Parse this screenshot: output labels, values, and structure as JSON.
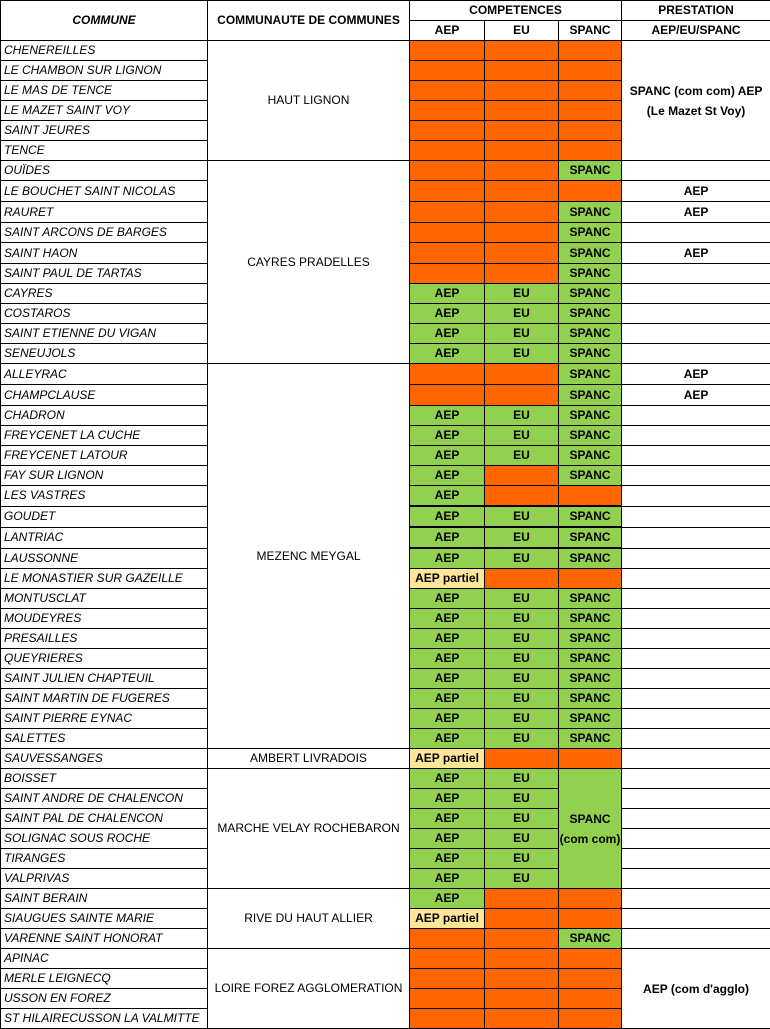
{
  "headers": {
    "commune": "COMMUNE",
    "comcom": "COMMUNAUTE DE COMMUNES",
    "competences": "COMPETENCES",
    "aep": "AEP",
    "eu": "EU",
    "spanc": "SPANC",
    "prestation": "PRESTATION",
    "prestation_sub": "AEP/EU/SPANC"
  },
  "colors": {
    "absent": "#ff6600",
    "present": "#92d050",
    "partial": "#ffe699"
  },
  "groups": [
    {
      "name": "HAUT LIGNON",
      "prestation_merged": "SPANC (com com) AEP (Le Mazet St Voy)",
      "communes": [
        {
          "name": "CHENEREILLES",
          "aep": "",
          "eu": "",
          "spanc": ""
        },
        {
          "name": "LE CHAMBON SUR LIGNON",
          "aep": "",
          "eu": "",
          "spanc": ""
        },
        {
          "name": "LE MAS DE TENCE",
          "aep": "",
          "eu": "",
          "spanc": ""
        },
        {
          "name": "LE MAZET SAINT VOY",
          "aep": "",
          "eu": "",
          "spanc": ""
        },
        {
          "name": "SAINT JEURES",
          "aep": "",
          "eu": "",
          "spanc": ""
        },
        {
          "name": "TENCE",
          "aep": "",
          "eu": "",
          "spanc": ""
        }
      ]
    },
    {
      "name": "CAYRES PRADELLES",
      "communes": [
        {
          "name": "OUÏDES",
          "aep": "",
          "eu": "",
          "spanc": "SPANC",
          "prest": ""
        },
        {
          "name": "LE BOUCHET SAINT NICOLAS",
          "aep": "",
          "eu": "",
          "spanc": "",
          "prest": "AEP"
        },
        {
          "name": "RAURET",
          "aep": "",
          "eu": "",
          "spanc": "SPANC",
          "prest": "AEP"
        },
        {
          "name": "SAINT ARCONS DE BARGES",
          "aep": "",
          "eu": "",
          "spanc": "SPANC",
          "prest": ""
        },
        {
          "name": "SAINT HAON",
          "aep": "",
          "eu": "",
          "spanc": "SPANC",
          "prest": "AEP"
        },
        {
          "name": "SAINT PAUL DE TARTAS",
          "aep": "",
          "eu": "",
          "spanc": "SPANC",
          "prest": ""
        },
        {
          "name": "CAYRES",
          "aep": "AEP",
          "eu": "EU",
          "spanc": "SPANC",
          "prest": ""
        },
        {
          "name": "COSTAROS",
          "aep": "AEP",
          "eu": "EU",
          "spanc": "SPANC",
          "prest": ""
        },
        {
          "name": "SAINT ETIENNE DU VIGAN",
          "aep": "AEP",
          "eu": "EU",
          "spanc": "SPANC",
          "prest": ""
        },
        {
          "name": "SENEUJOLS",
          "aep": "AEP",
          "eu": "EU",
          "spanc": "SPANC",
          "prest": ""
        }
      ]
    },
    {
      "name": "MEZENC MEYGAL",
      "communes": [
        {
          "name": "ALLEYRAC",
          "aep": "",
          "eu": "",
          "spanc": "SPANC",
          "prest": "AEP"
        },
        {
          "name": "CHAMPCLAUSE",
          "aep": "",
          "eu": "",
          "spanc": "SPANC",
          "prest": "AEP"
        },
        {
          "name": "CHADRON",
          "aep": "AEP",
          "eu": "EU",
          "spanc": "SPANC",
          "prest": ""
        },
        {
          "name": "FREYCENET LA CUCHE",
          "aep": "AEP",
          "eu": "EU",
          "spanc": "SPANC",
          "prest": ""
        },
        {
          "name": "FREYCENET LATOUR",
          "aep": "AEP",
          "eu": "EU",
          "spanc": "SPANC",
          "prest": ""
        },
        {
          "name": "FAY SUR LIGNON",
          "aep": "AEP",
          "eu": "",
          "spanc": "SPANC",
          "prest": ""
        },
        {
          "name": "LES VASTRES",
          "aep": "AEP",
          "eu": "",
          "spanc": "",
          "prest": ""
        },
        {
          "name": "GOUDET",
          "aep": "AEP",
          "eu": "EU",
          "spanc": "SPANC",
          "prest": ""
        },
        {
          "name": "LANTRIAC",
          "aep": "AEP",
          "eu": "EU",
          "spanc": "SPANC",
          "prest": ""
        },
        {
          "name": "LAUSSONNE",
          "aep": "AEP",
          "eu": "EU",
          "spanc": "SPANC",
          "prest": ""
        },
        {
          "name": "LE MONASTIER SUR GAZEILLE",
          "aep": "AEP partiel",
          "eu": "",
          "spanc": "",
          "prest": ""
        },
        {
          "name": "MONTUSCLAT",
          "aep": "AEP",
          "eu": "EU",
          "spanc": "SPANC",
          "prest": ""
        },
        {
          "name": "MOUDEYRES",
          "aep": "AEP",
          "eu": "EU",
          "spanc": "SPANC",
          "prest": ""
        },
        {
          "name": "PRESAILLES",
          "aep": "AEP",
          "eu": "EU",
          "spanc": "SPANC",
          "prest": ""
        },
        {
          "name": "QUEYRIERES",
          "aep": "AEP",
          "eu": "EU",
          "spanc": "SPANC",
          "prest": ""
        },
        {
          "name": "SAINT JULIEN CHAPTEUIL",
          "aep": "AEP",
          "eu": "EU",
          "spanc": "SPANC",
          "prest": ""
        },
        {
          "name": "SAINT MARTIN DE FUGERES",
          "aep": "AEP",
          "eu": "EU",
          "spanc": "SPANC",
          "prest": ""
        },
        {
          "name": "SAINT PIERRE EYNAC",
          "aep": "AEP",
          "eu": "EU",
          "spanc": "SPANC",
          "prest": ""
        },
        {
          "name": "SALETTES",
          "aep": "AEP",
          "eu": "EU",
          "spanc": "SPANC",
          "prest": ""
        }
      ]
    },
    {
      "name": "AMBERT LIVRADOIS",
      "communes": [
        {
          "name": "SAUVESSANGES",
          "aep": "AEP partiel",
          "eu": "",
          "spanc": "",
          "prest": ""
        }
      ]
    },
    {
      "name": "MARCHE VELAY ROCHEBARON",
      "spanc_merged": "SPANC (com com)",
      "communes": [
        {
          "name": "BOISSET",
          "aep": "AEP",
          "eu": "EU",
          "prest": ""
        },
        {
          "name": "SAINT ANDRE DE CHALENCON",
          "aep": "AEP",
          "eu": "EU",
          "prest": ""
        },
        {
          "name": "SAINT PAL DE CHALENCON",
          "aep": "AEP",
          "eu": "EU",
          "prest": ""
        },
        {
          "name": "SOLIGNAC SOUS ROCHE",
          "aep": "AEP",
          "eu": "EU",
          "prest": ""
        },
        {
          "name": "TIRANGES",
          "aep": "AEP",
          "eu": "EU",
          "prest": ""
        },
        {
          "name": "VALPRIVAS",
          "aep": "AEP",
          "eu": "EU",
          "prest": ""
        }
      ]
    },
    {
      "name": "RIVE DU HAUT ALLIER",
      "communes": [
        {
          "name": "SAINT BERAIN",
          "aep": "AEP",
          "eu": "",
          "spanc": "",
          "prest": ""
        },
        {
          "name": "SIAUGUES SAINTE MARIE",
          "aep": "AEP partiel",
          "eu": "",
          "spanc": "",
          "prest": ""
        },
        {
          "name": "VARENNE SAINT HONORAT",
          "aep": "",
          "eu": "",
          "spanc": "SPANC",
          "prest": ""
        }
      ]
    },
    {
      "name": "LOIRE FOREZ AGGLOMERATION",
      "prestation_merged": "AEP (com d'agglo)",
      "communes": [
        {
          "name": "APINAC",
          "aep": "",
          "eu": "",
          "spanc": ""
        },
        {
          "name": "MERLE LEIGNECQ",
          "aep": "",
          "eu": "",
          "spanc": ""
        },
        {
          "name": "USSON EN FOREZ",
          "aep": "",
          "eu": "",
          "spanc": ""
        },
        {
          "name": "ST HILAIRECUSSON LA VALMITTE",
          "aep": "",
          "eu": "",
          "spanc": ""
        }
      ]
    }
  ]
}
